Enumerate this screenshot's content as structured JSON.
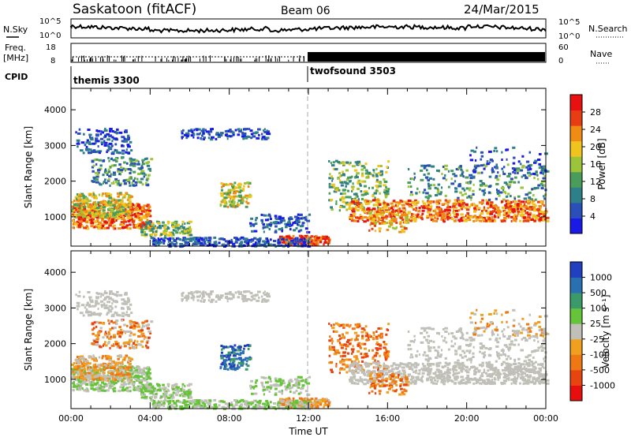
{
  "header": {
    "station": "Saskatoon (fitACF)",
    "beam": "Beam 06",
    "date": "24/Mar/2015"
  },
  "top_panels": {
    "nsky_label": "N.Sky",
    "nsky_ticks": [
      "10^5",
      "10^0"
    ],
    "nsearch_label": "N.Search",
    "nsearch_ticks": [
      "10^5",
      "10^0"
    ],
    "freq_label": "Freq.",
    "freq_unit": "[MHz]",
    "freq_ticks": [
      "18",
      "8"
    ],
    "nave_label": "Nave",
    "nave_ticks": [
      "60",
      "0"
    ],
    "cpid_label": "CPID",
    "cpid_modes": [
      {
        "name": "themis 3300",
        "start_hour": 0,
        "end_hour": 12
      },
      {
        "name": "twofsound 3503",
        "start_hour": 12,
        "end_hour": 24
      }
    ]
  },
  "colors": {
    "power_scale": [
      "#1a1ae6",
      "#2a4fb8",
      "#2f7f8a",
      "#4a9c5a",
      "#9cc43a",
      "#f0c41e",
      "#f08c14",
      "#e83c14",
      "#e81010"
    ],
    "velocity_scale": [
      "#2040c0",
      "#2a6fb0",
      "#3a9a6a",
      "#66c43a",
      "#c0c0b8",
      "#f0a01e",
      "#f07814",
      "#e84410",
      "#e80e0e"
    ],
    "dashed_line": "#aaaaaa"
  },
  "chart_data": [
    {
      "type": "heatmap",
      "name": "power-panel",
      "xlabel": "",
      "ylabel": "Slant Range [km]",
      "xlim": [
        0,
        24
      ],
      "ylim": [
        180,
        4600
      ],
      "y_ticks": [
        "1000",
        "2000",
        "3000",
        "4000"
      ],
      "colorbar": {
        "label": "Power [dB]",
        "ticks": [
          "4",
          "8",
          "12",
          "16",
          "20",
          "24",
          "28"
        ],
        "range": [
          0,
          32
        ]
      }
    },
    {
      "type": "heatmap",
      "name": "velocity-panel",
      "xlabel": "Time UT",
      "ylabel": "Slant Range [km]",
      "xlim": [
        0,
        24
      ],
      "ylim": [
        180,
        4600
      ],
      "x_ticks": [
        "00:00",
        "04:00",
        "08:00",
        "12:00",
        "16:00",
        "20:00",
        "00:00"
      ],
      "y_ticks": [
        "1000",
        "2000",
        "3000",
        "4000"
      ],
      "colorbar": {
        "label": "Velocity [m s⁻¹]",
        "ticks": [
          "1000",
          "500",
          "100",
          "25",
          "-25",
          "-100",
          "-500",
          "-1000"
        ]
      }
    }
  ]
}
